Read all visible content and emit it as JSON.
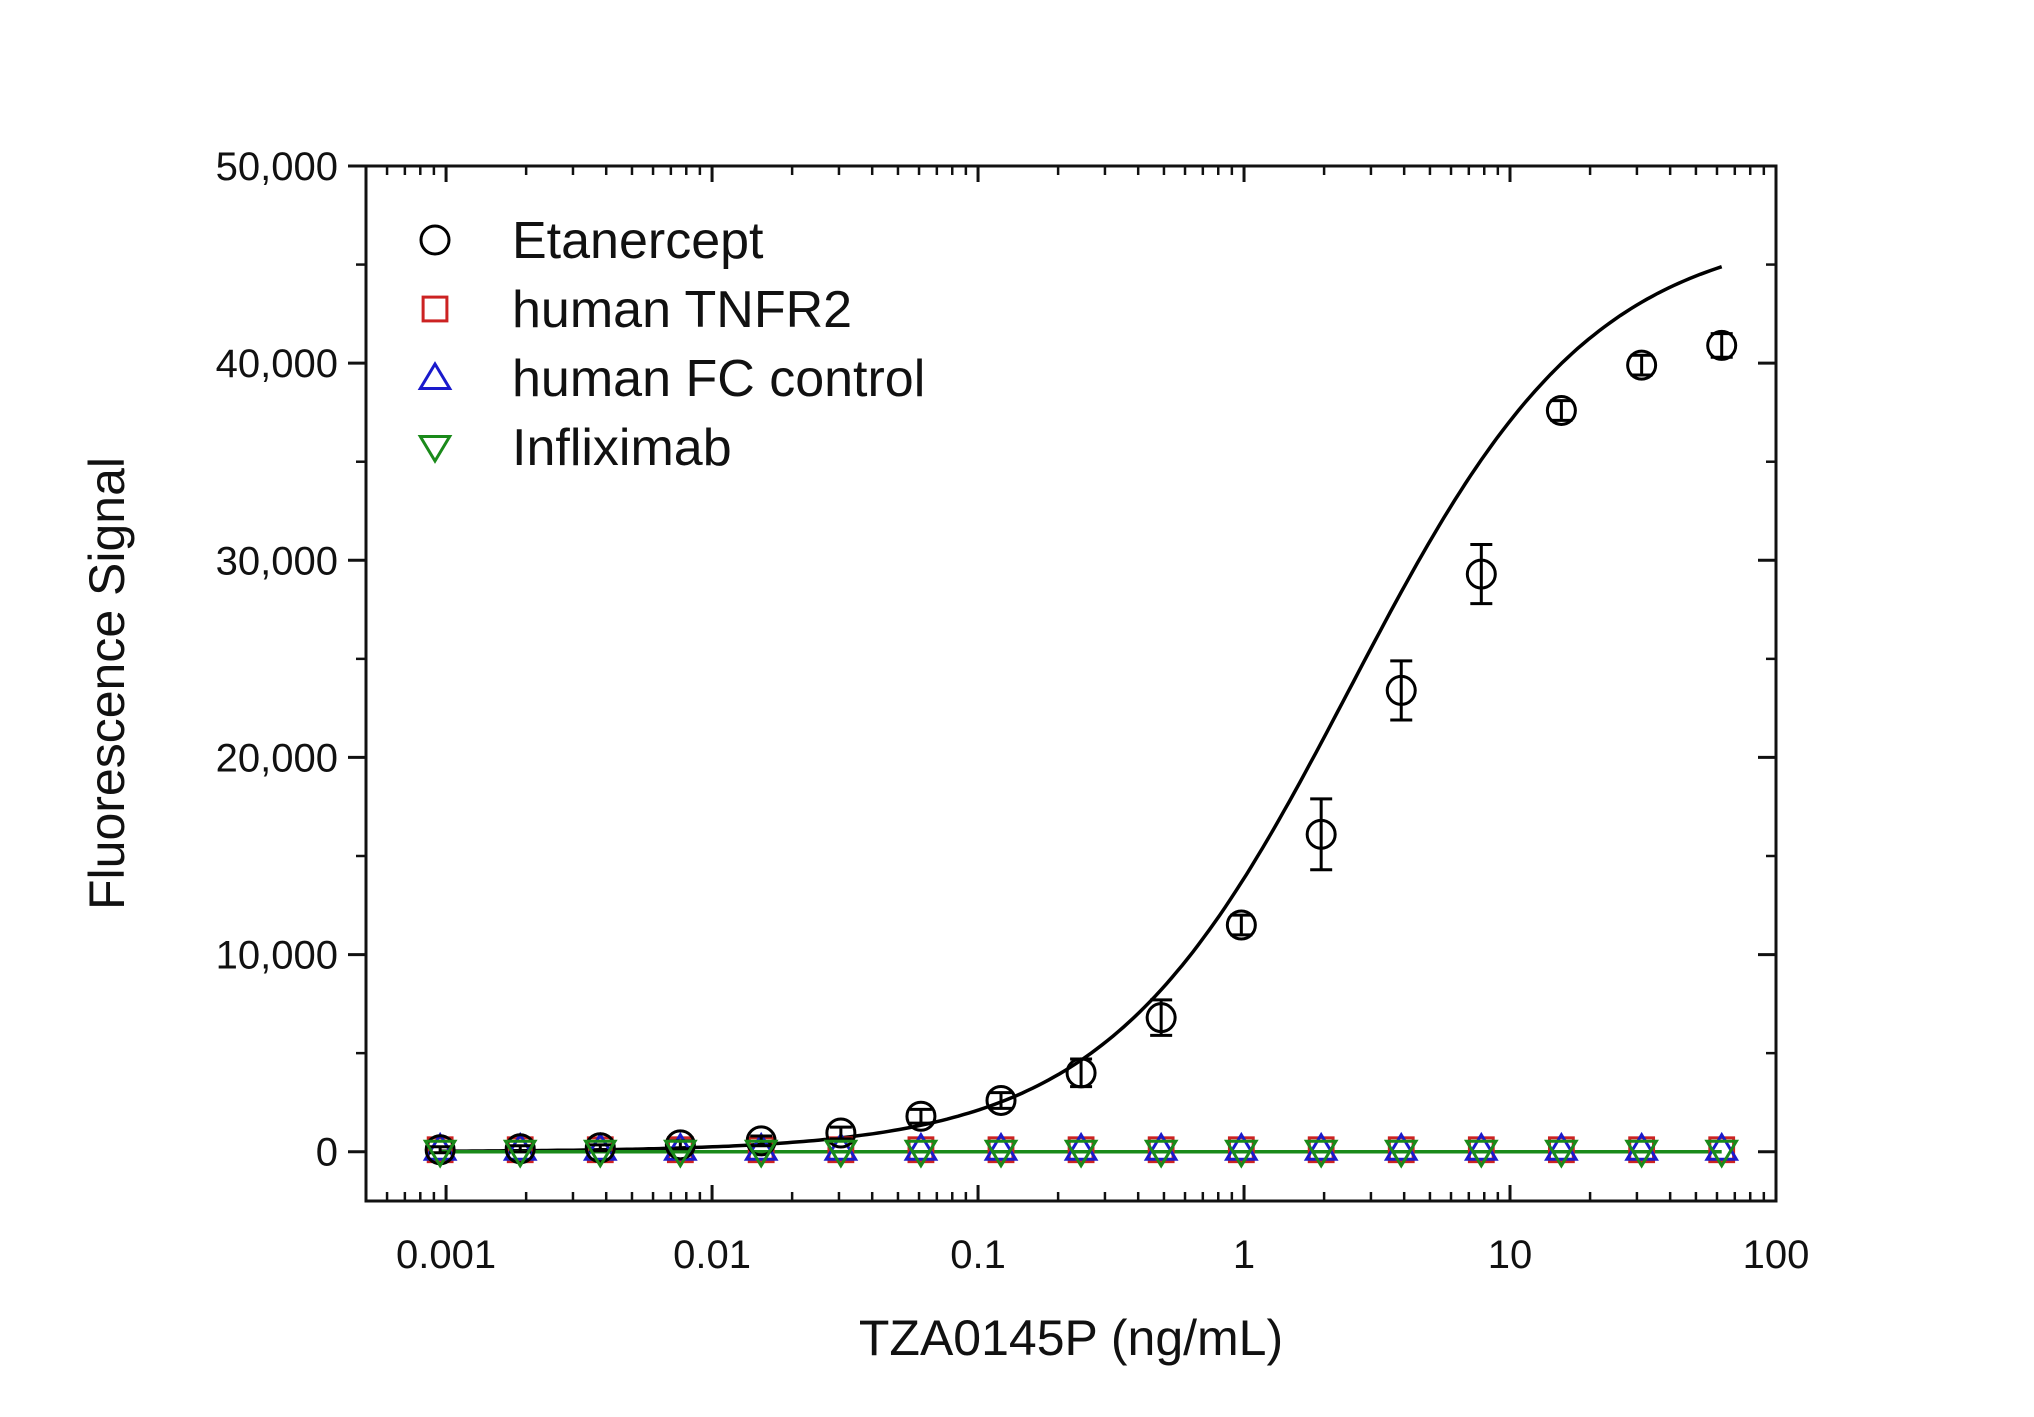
{
  "chart_data": {
    "type": "scatter",
    "xlabel": "TZA0145P (ng/mL)",
    "ylabel": "Fluorescence Signal",
    "xscale": "log",
    "xlim": [
      0.0005,
      100
    ],
    "ylim": [
      -2500,
      50000
    ],
    "x_ticks": [
      0.001,
      0.01,
      0.1,
      1,
      10,
      100
    ],
    "x_tick_labels": [
      "0.001",
      "0.01",
      "0.1",
      "1",
      "10",
      "100"
    ],
    "y_ticks": [
      0,
      10000,
      20000,
      30000,
      40000,
      50000
    ],
    "y_tick_labels": [
      "0",
      "10,000",
      "20,000",
      "30,000",
      "40,000",
      "50,000"
    ],
    "legend_position": "top-left",
    "x": [
      0.00095,
      0.0019,
      0.0038,
      0.0076,
      0.0153,
      0.0305,
      0.061,
      0.122,
      0.244,
      0.488,
      0.977,
      1.95,
      3.9,
      7.8,
      15.6,
      31.25,
      62.5
    ],
    "series": [
      {
        "name": "Etanercept",
        "marker": "circle",
        "color": "#000000",
        "values": [
          100,
          150,
          200,
          350,
          550,
          950,
          1800,
          2600,
          4000,
          6800,
          11500,
          16100,
          23400,
          29300,
          37600,
          39900,
          40900
        ],
        "errors": [
          150,
          150,
          150,
          200,
          250,
          300,
          350,
          400,
          700,
          900,
          500,
          1800,
          1500,
          1500,
          500,
          500,
          600
        ]
      },
      {
        "name": "human TNFR2",
        "marker": "square",
        "color": "#cc2222",
        "values": [
          100,
          100,
          100,
          100,
          100,
          100,
          100,
          100,
          100,
          100,
          100,
          100,
          100,
          100,
          100,
          100,
          100
        ]
      },
      {
        "name": "human FC control",
        "marker": "triangle-up",
        "color": "#1a1acc",
        "values": [
          150,
          150,
          150,
          150,
          150,
          150,
          150,
          150,
          150,
          150,
          150,
          150,
          150,
          150,
          150,
          150,
          150
        ]
      },
      {
        "name": "Infliximab",
        "marker": "triangle-down",
        "color": "#1a8a1a",
        "values": [
          0,
          0,
          0,
          0,
          0,
          0,
          0,
          0,
          0,
          0,
          0,
          0,
          0,
          0,
          0,
          0,
          0
        ]
      }
    ],
    "fits": [
      {
        "series": "Etanercept",
        "model": "4PL",
        "bottom": 0,
        "top": 47000,
        "ec50": 2.5,
        "hill": 0.95,
        "x_range": [
          0.00095,
          62.5
        ],
        "color": "#000000"
      },
      {
        "series": "Infliximab",
        "model": "flat",
        "level": 0,
        "x_range": [
          0.00095,
          62.5
        ],
        "color": "#1a8a1a"
      }
    ]
  }
}
